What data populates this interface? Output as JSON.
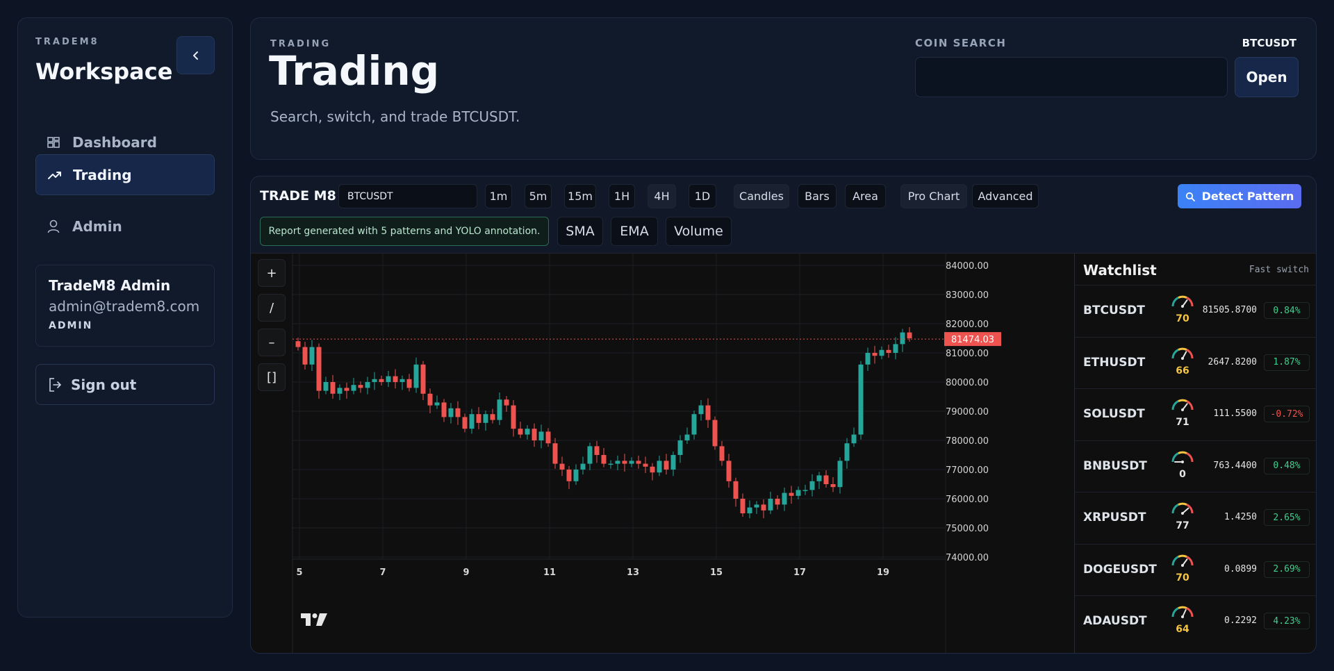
{
  "sidebar": {
    "brand_small": "TRADEM8",
    "brand_title": "Workspace",
    "items": [
      {
        "label": "Dashboard",
        "icon": "dashboard-icon"
      },
      {
        "label": "Trading",
        "icon": "trending-up-icon",
        "active": true
      },
      {
        "label": "Admin",
        "icon": "user-icon"
      }
    ],
    "user": {
      "name": "TradeM8 Admin",
      "email": "admin@tradem8.com",
      "role": "ADMIN"
    },
    "signout_label": "Sign out"
  },
  "header": {
    "eyebrow": "TRADING",
    "title": "Trading",
    "subtitle": "Search, switch, and trade BTCUSDT.",
    "coin_search_label": "COIN SEARCH",
    "current_symbol": "BTCUSDT",
    "coin_search_value": "",
    "open_label": "Open"
  },
  "toolbar": {
    "brand": "TRADE M8",
    "symbol": "BTCUSDT",
    "intervals": [
      "1m",
      "5m",
      "15m",
      "1H",
      "4H",
      "1D"
    ],
    "selected_interval": "4H",
    "chart_types": [
      "Candles",
      "Bars",
      "Area"
    ],
    "selected_chart_type": "Candles",
    "extra": [
      "Pro Chart",
      "Advanced"
    ],
    "detect_label": "Detect Pattern",
    "report_note": "Report generated with 5 patterns and YOLO annotation.",
    "indicators": [
      "SMA",
      "EMA",
      "Volume"
    ],
    "tools": [
      "+",
      "/",
      "–",
      "[]"
    ]
  },
  "chart_data": {
    "type": "candlestick",
    "symbol": "BTCUSDT",
    "interval": "4H",
    "last_price": "81474.03",
    "y_ticks": [
      "84000.00",
      "83000.00",
      "82000.00",
      "81000.00",
      "80000.00",
      "79000.00",
      "78000.00",
      "77000.00",
      "76000.00",
      "75000.00",
      "74000.00"
    ],
    "x_ticks": [
      "5",
      "7",
      "9",
      "11",
      "13",
      "15",
      "17",
      "19"
    ],
    "ylim": [
      73500,
      84500
    ],
    "candles_close": [
      81200,
      80600,
      81200,
      79700,
      80000,
      79600,
      79800,
      79700,
      79900,
      79800,
      80000,
      80100,
      80000,
      80200,
      80000,
      80100,
      79800,
      80600,
      79600,
      79200,
      79300,
      78800,
      79100,
      78800,
      78400,
      78900,
      78600,
      78900,
      78700,
      79400,
      79200,
      78400,
      78200,
      78400,
      78000,
      78300,
      77900,
      77200,
      77000,
      76600,
      77000,
      77200,
      77800,
      77500,
      77200,
      77200,
      77300,
      77200,
      77300,
      77200,
      77100,
      76900,
      77300,
      77000,
      77500,
      78000,
      78200,
      78900,
      79200,
      78700,
      77800,
      77300,
      76600,
      76000,
      75500,
      75700,
      75800,
      75600,
      76000,
      75800,
      76200,
      76100,
      76300,
      76300,
      76600,
      76800,
      76500,
      76400,
      77300,
      77900,
      78200,
      80600,
      81000,
      80900,
      81100,
      81000,
      81300,
      81700,
      81500
    ]
  },
  "watchlist": {
    "title": "Watchlist",
    "subtitle": "Fast switch",
    "rows": [
      {
        "symbol": "BTCUSDT",
        "score": 70,
        "price": "81505.8700",
        "change": "0.84%",
        "positive": true
      },
      {
        "symbol": "ETHUSDT",
        "score": 66,
        "price": "2647.8200",
        "change": "1.87%",
        "positive": true
      },
      {
        "symbol": "SOLUSDT",
        "score": 71,
        "price": "111.5500",
        "change": "-0.72%",
        "positive": false
      },
      {
        "symbol": "BNBUSDT",
        "score": 0,
        "price": "763.4400",
        "change": "0.48%",
        "positive": true
      },
      {
        "symbol": "XRPUSDT",
        "score": 77,
        "price": "1.4250",
        "change": "2.65%",
        "positive": true
      },
      {
        "symbol": "DOGEUSDT",
        "score": 70,
        "price": "0.0899",
        "change": "2.69%",
        "positive": true
      },
      {
        "symbol": "ADAUSDT",
        "score": 64,
        "price": "0.2292",
        "change": "4.23%",
        "positive": true
      }
    ]
  },
  "colors": {
    "up": "#26a69a",
    "down": "#ef5350",
    "accent": "#3b82f6",
    "score_yellow": "#f5c542",
    "score_white": "#e6e6e6"
  }
}
